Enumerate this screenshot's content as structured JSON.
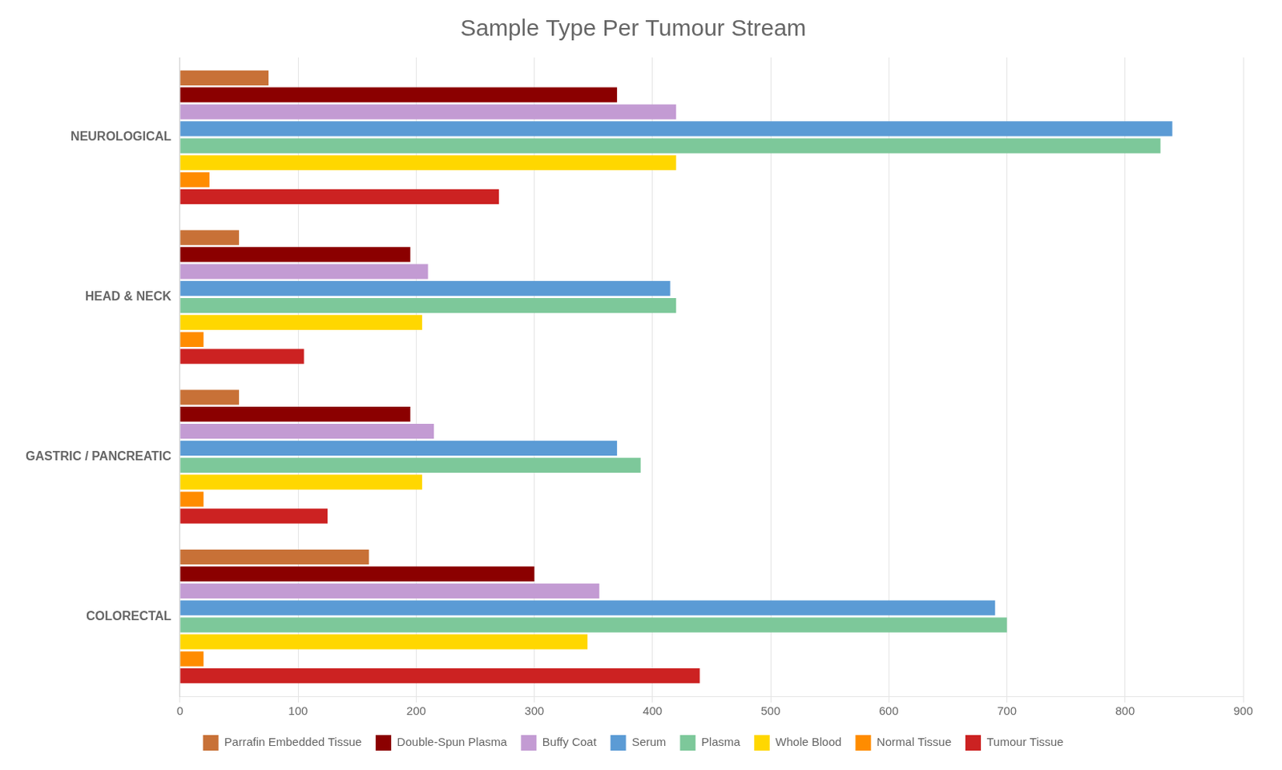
{
  "chart_data": {
    "type": "bar",
    "orientation": "horizontal",
    "title": "Sample Type Per Tumour Stream",
    "categories": [
      "COLORECTAL",
      "GASTRIC / PANCREATIC",
      "HEAD & NECK",
      "NEUROLOGICAL"
    ],
    "series": [
      {
        "name": "Parrafin Embedded Tissue",
        "color": "#C87137",
        "values": [
          160,
          50,
          50,
          75
        ]
      },
      {
        "name": "Double-Spun Plasma",
        "color": "#8B0000",
        "values": [
          300,
          195,
          195,
          370
        ]
      },
      {
        "name": "Buffy Coat",
        "color": "#C39BD3",
        "values": [
          355,
          215,
          210,
          420
        ]
      },
      {
        "name": "Serum",
        "color": "#5B9BD5",
        "values": [
          690,
          370,
          415,
          840
        ]
      },
      {
        "name": "Plasma",
        "color": "#7DC89A",
        "values": [
          700,
          390,
          420,
          830
        ]
      },
      {
        "name": "Whole Blood",
        "color": "#FFD700",
        "values": [
          345,
          205,
          205,
          420
        ]
      },
      {
        "name": "Normal Tissue",
        "color": "#FF8C00",
        "values": [
          20,
          20,
          20,
          25
        ]
      },
      {
        "name": "Tumour Tissue",
        "color": "#CC2222",
        "values": [
          440,
          125,
          105,
          270
        ]
      }
    ],
    "xlim": [
      0,
      900
    ],
    "xticks": [
      0,
      100,
      200,
      300,
      400,
      500,
      600,
      700,
      800,
      900
    ],
    "grid": true,
    "legend": "bottom"
  }
}
